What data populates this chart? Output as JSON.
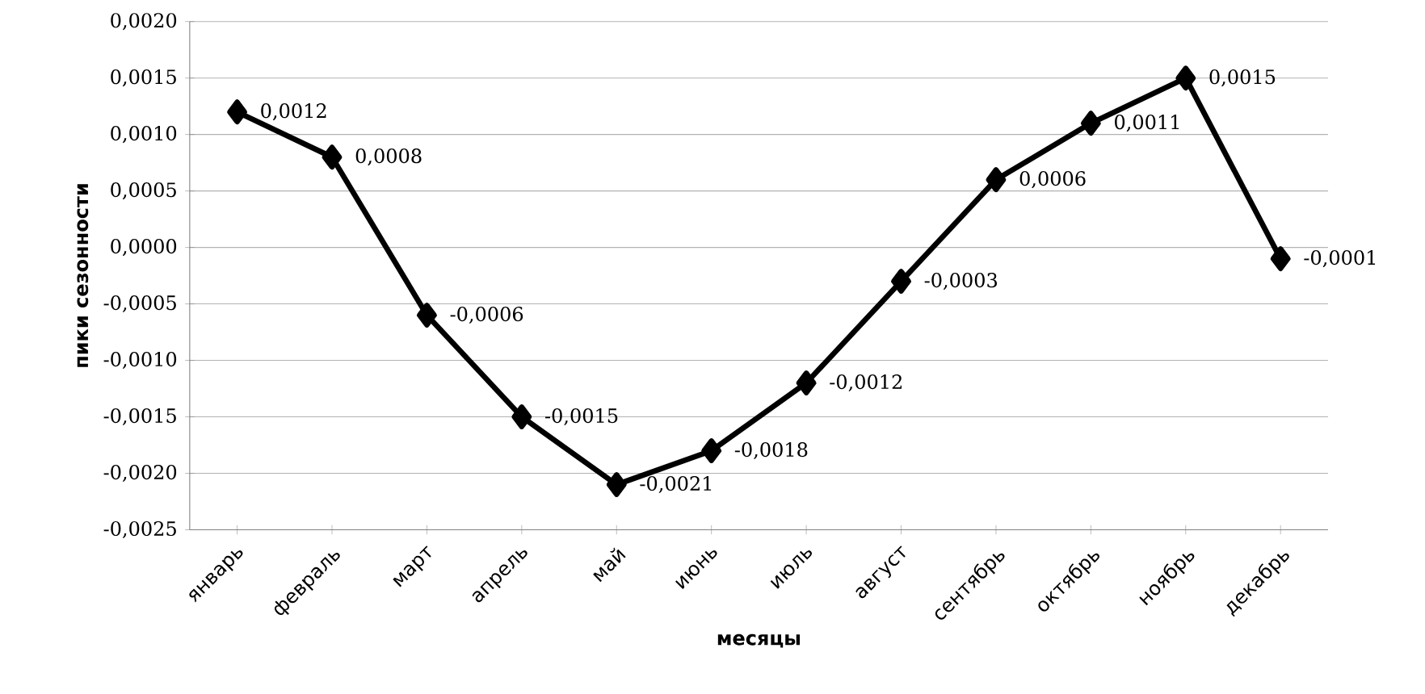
{
  "chart_data": {
    "type": "line",
    "xlabel": "месяцы",
    "ylabel": "пики сезонности",
    "categories": [
      "январь",
      "февраль",
      "март",
      "апрель",
      "май",
      "июнь",
      "июль",
      "август",
      "сентябрь",
      "октябрь",
      "ноябрь",
      "декабрь"
    ],
    "series": [
      {
        "color": "#000000",
        "values": [
          0.0012,
          0.0008,
          -0.0006,
          -0.0015,
          -0.0021,
          -0.0018,
          -0.0012,
          -0.0003,
          0.0006,
          0.0011,
          0.0015,
          -0.0001
        ],
        "value_labels": [
          "0,0012",
          "0,0008",
          "-0,0006",
          "-0,0015",
          "-0,0021",
          "-0,0018",
          "-0,0012",
          "-0,0003",
          "0,0006",
          "0,0011",
          "0,0015",
          "-0,0001"
        ]
      }
    ],
    "ylim": [
      -0.0025,
      0.002
    ],
    "yticks": [
      {
        "value": -0.0025,
        "label": "-0,0025"
      },
      {
        "value": -0.002,
        "label": "-0,0020"
      },
      {
        "value": -0.0015,
        "label": "-0,0015"
      },
      {
        "value": -0.001,
        "label": "-0,0010"
      },
      {
        "value": -0.0005,
        "label": "-0,0005"
      },
      {
        "value": 0,
        "label": "0,0000"
      },
      {
        "value": 0.0005,
        "label": "0,0005"
      },
      {
        "value": 0.001,
        "label": "0,0010"
      },
      {
        "value": 0.0015,
        "label": "0,0015"
      },
      {
        "value": 0.002,
        "label": "0,0020"
      }
    ],
    "grid": "y",
    "marker": "diamond",
    "line_style": "solid"
  }
}
